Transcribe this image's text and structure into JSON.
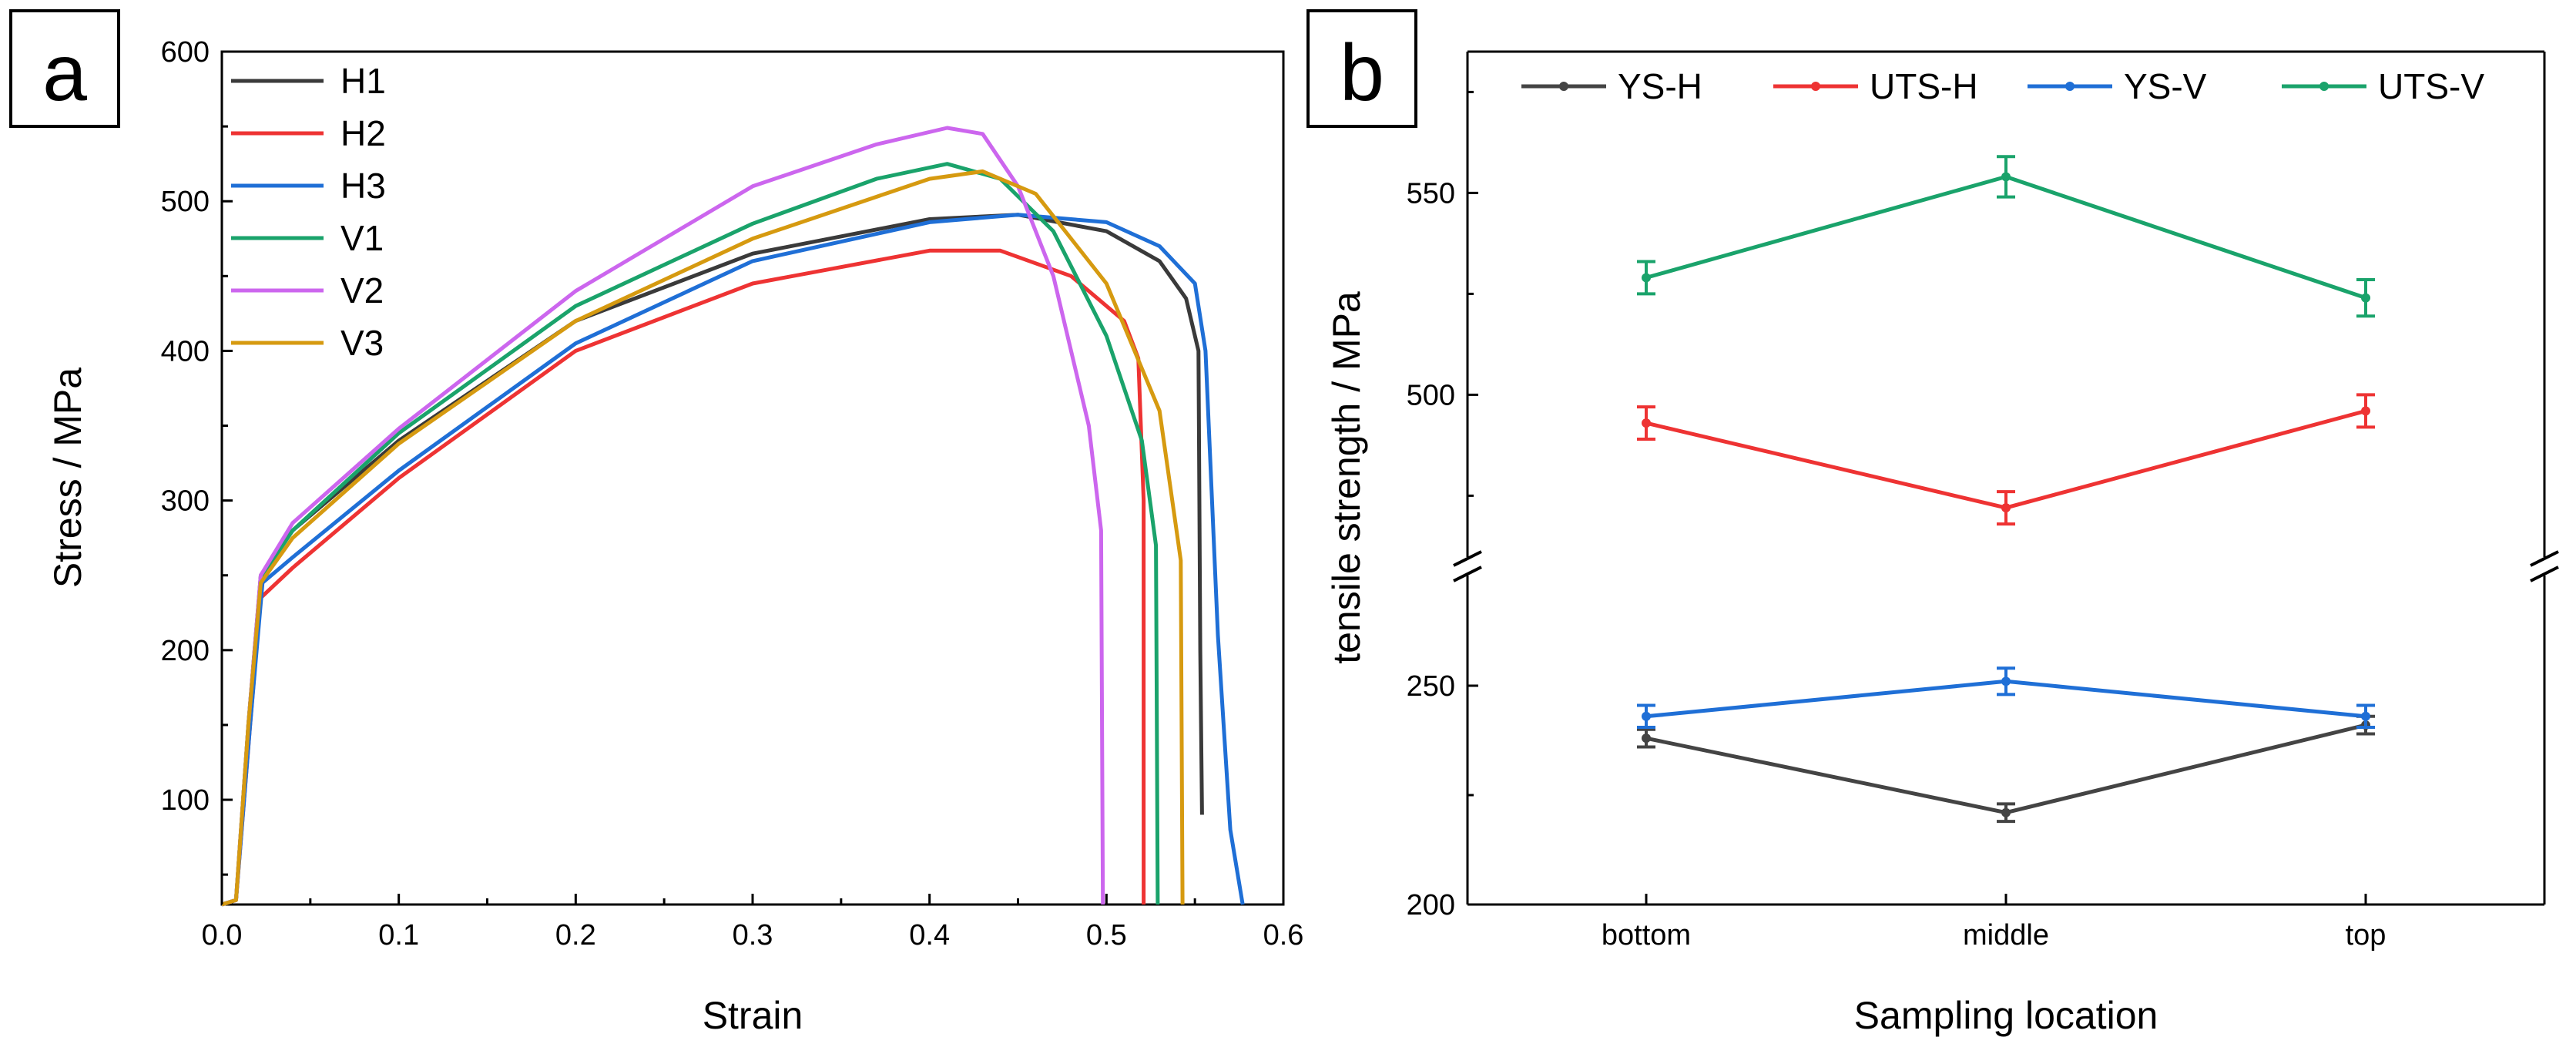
{
  "figure": {
    "panel_a_label": "a",
    "panel_b_label": "b"
  },
  "chart_data": [
    {
      "type": "line",
      "panel": "a",
      "title": "",
      "xlabel": "Strain",
      "ylabel": "Stress / MPa",
      "xlim": [
        0,
        0.6
      ],
      "ylim": [
        30,
        600
      ],
      "xticks": [
        0,
        0.1,
        0.2,
        0.3,
        0.4,
        0.5,
        0.6
      ],
      "xtick_labels": [
        "0.0",
        "0.1",
        "0.2",
        "0.3",
        "0.4",
        "0.5",
        "0.6"
      ],
      "yticks": [
        100,
        200,
        300,
        400,
        500,
        600
      ],
      "ytick_labels": [
        "100",
        "200",
        "300",
        "400",
        "500",
        "600"
      ],
      "legend_position": "top-left",
      "series": [
        {
          "name": "H1",
          "color": "#3a3a3a",
          "points": [
            [
              0,
              30
            ],
            [
              0.008,
              33
            ],
            [
              0.015,
              150
            ],
            [
              0.022,
              250
            ],
            [
              0.04,
              280
            ],
            [
              0.1,
              340
            ],
            [
              0.2,
              420
            ],
            [
              0.3,
              465
            ],
            [
              0.4,
              488
            ],
            [
              0.45,
              491
            ],
            [
              0.5,
              480
            ],
            [
              0.53,
              460
            ],
            [
              0.545,
              435
            ],
            [
              0.552,
              400
            ],
            [
              0.553,
              200
            ],
            [
              0.554,
              90
            ]
          ]
        },
        {
          "name": "H2",
          "color": "#ee3333",
          "points": [
            [
              0,
              30
            ],
            [
              0.008,
              33
            ],
            [
              0.016,
              150
            ],
            [
              0.022,
              235
            ],
            [
              0.04,
              255
            ],
            [
              0.1,
              315
            ],
            [
              0.2,
              400
            ],
            [
              0.3,
              445
            ],
            [
              0.4,
              467
            ],
            [
              0.44,
              467
            ],
            [
              0.48,
              450
            ],
            [
              0.51,
              420
            ],
            [
              0.518,
              395
            ],
            [
              0.521,
              300
            ],
            [
              0.521,
              30
            ]
          ]
        },
        {
          "name": "H3",
          "color": "#1f6fd6",
          "points": [
            [
              0,
              30
            ],
            [
              0.008,
              33
            ],
            [
              0.016,
              150
            ],
            [
              0.023,
              245
            ],
            [
              0.04,
              262
            ],
            [
              0.1,
              320
            ],
            [
              0.2,
              405
            ],
            [
              0.3,
              460
            ],
            [
              0.4,
              486
            ],
            [
              0.45,
              491
            ],
            [
              0.5,
              486
            ],
            [
              0.53,
              470
            ],
            [
              0.55,
              445
            ],
            [
              0.556,
              400
            ],
            [
              0.563,
              210
            ],
            [
              0.57,
              80
            ],
            [
              0.577,
              30
            ]
          ]
        },
        {
          "name": "V1",
          "color": "#1aa36b",
          "points": [
            [
              0,
              30
            ],
            [
              0.008,
              33
            ],
            [
              0.015,
              150
            ],
            [
              0.022,
              248
            ],
            [
              0.04,
              280
            ],
            [
              0.1,
              345
            ],
            [
              0.2,
              430
            ],
            [
              0.3,
              485
            ],
            [
              0.37,
              515
            ],
            [
              0.41,
              525
            ],
            [
              0.44,
              515
            ],
            [
              0.47,
              480
            ],
            [
              0.5,
              410
            ],
            [
              0.52,
              340
            ],
            [
              0.528,
              270
            ],
            [
              0.529,
              30
            ]
          ]
        },
        {
          "name": "V2",
          "color": "#cc66ee",
          "points": [
            [
              0,
              30
            ],
            [
              0.008,
              33
            ],
            [
              0.015,
              150
            ],
            [
              0.022,
              250
            ],
            [
              0.04,
              285
            ],
            [
              0.1,
              348
            ],
            [
              0.2,
              440
            ],
            [
              0.3,
              510
            ],
            [
              0.37,
              538
            ],
            [
              0.41,
              549
            ],
            [
              0.43,
              545
            ],
            [
              0.45,
              510
            ],
            [
              0.47,
              450
            ],
            [
              0.49,
              350
            ],
            [
              0.497,
              280
            ],
            [
              0.498,
              30
            ]
          ]
        },
        {
          "name": "V3",
          "color": "#d69a10",
          "points": [
            [
              0,
              30
            ],
            [
              0.008,
              33
            ],
            [
              0.015,
              150
            ],
            [
              0.022,
              245
            ],
            [
              0.04,
              275
            ],
            [
              0.1,
              338
            ],
            [
              0.2,
              420
            ],
            [
              0.3,
              475
            ],
            [
              0.4,
              515
            ],
            [
              0.43,
              520
            ],
            [
              0.46,
              505
            ],
            [
              0.5,
              445
            ],
            [
              0.53,
              360
            ],
            [
              0.542,
              260
            ],
            [
              0.543,
              30
            ]
          ]
        }
      ]
    },
    {
      "type": "line",
      "panel": "b",
      "title": "",
      "xlabel": "Sampling location",
      "ylabel": "tensile strength / MPa",
      "categories": [
        "bottom",
        "middle",
        "top"
      ],
      "y_break": {
        "lower_range": [
          200,
          275
        ],
        "upper_range": [
          460,
          585
        ]
      },
      "yticks": [
        200,
        250,
        500,
        550
      ],
      "ytick_labels": [
        "200",
        "250",
        "500",
        "550"
      ],
      "legend_position": "top",
      "series": [
        {
          "name": "YS-H",
          "color": "#444444",
          "values": [
            238,
            221,
            241
          ],
          "errors": [
            2.0,
            2.0,
            2.0
          ]
        },
        {
          "name": "UTS-H",
          "color": "#ee3333",
          "values": [
            493,
            472,
            496
          ],
          "errors": [
            4.0,
            4.0,
            4.0
          ]
        },
        {
          "name": "YS-V",
          "color": "#1f6fd6",
          "values": [
            243,
            251,
            243
          ],
          "errors": [
            2.5,
            3.0,
            2.5
          ]
        },
        {
          "name": "UTS-V",
          "color": "#1aa36b",
          "values": [
            529,
            554,
            524
          ],
          "errors": [
            4.0,
            5.0,
            4.5
          ]
        }
      ]
    }
  ]
}
